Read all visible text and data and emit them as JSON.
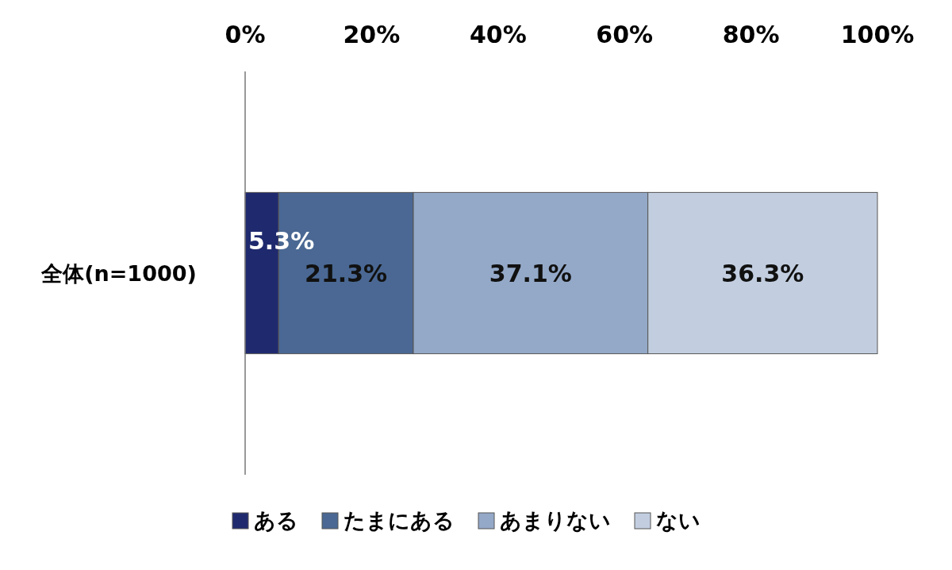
{
  "chart_data": {
    "type": "bar",
    "orientation": "horizontal",
    "stacked": true,
    "categories": [
      "全体(n=1000)"
    ],
    "series": [
      {
        "name": "ある",
        "color": "#1f2a6e",
        "values": [
          5.3
        ],
        "value_labels": [
          "5.3%"
        ]
      },
      {
        "name": "たまにある",
        "color": "#4a6893",
        "values": [
          21.3
        ],
        "value_labels": [
          "21.3%"
        ]
      },
      {
        "name": "あまりない",
        "color": "#94a9c8",
        "values": [
          37.1
        ],
        "value_labels": [
          "37.1%"
        ]
      },
      {
        "name": "ない",
        "color": "#c2cee0",
        "values": [
          36.3
        ],
        "value_labels": [
          "36.3%"
        ]
      }
    ],
    "xlim": [
      0,
      100
    ],
    "xticks": [
      {
        "value": 0,
        "label": "0%"
      },
      {
        "value": 20,
        "label": "20%"
      },
      {
        "value": 40,
        "label": "40%"
      },
      {
        "value": 60,
        "label": "60%"
      },
      {
        "value": 80,
        "label": "80%"
      },
      {
        "value": 100,
        "label": "100%"
      }
    ],
    "legend": "bottom"
  }
}
